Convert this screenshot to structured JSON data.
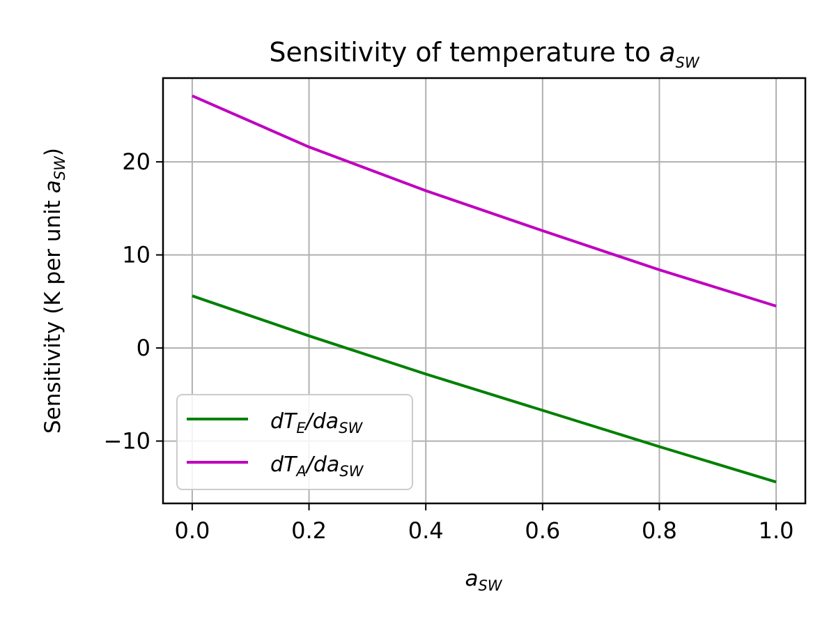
{
  "chart_data": {
    "type": "line",
    "title": {
      "prefix": "Sensitivity of temperature to ",
      "var": "a",
      "sub": "SW"
    },
    "xlabel": {
      "var": "a",
      "sub": "SW"
    },
    "ylabel": {
      "prefix": "Sensitivity (K per unit ",
      "var": "a",
      "sub": "SW",
      "suffix": ")"
    },
    "xlim": [
      -0.05,
      1.05
    ],
    "ylim": [
      -16.7,
      29.0
    ],
    "xticks": [
      0.0,
      0.2,
      0.4,
      0.6,
      0.8,
      1.0
    ],
    "xtick_labels": [
      "0.0",
      "0.2",
      "0.4",
      "0.6",
      "0.8",
      "1.0"
    ],
    "yticks": [
      -10,
      0,
      10,
      20
    ],
    "ytick_labels": [
      "−10",
      "0",
      "10",
      "20"
    ],
    "grid": true,
    "legend_position": "lower-left",
    "series": [
      {
        "name": "dT_E/da_SW",
        "legend": {
          "d1": "dT",
          "s1": "E",
          "mid": "/da",
          "s2": "SW"
        },
        "color": "#008000",
        "x": [
          0.0,
          0.2,
          0.4,
          0.6,
          0.8,
          1.0
        ],
        "y": [
          5.6,
          1.3,
          -2.8,
          -6.7,
          -10.6,
          -14.4
        ]
      },
      {
        "name": "dT_A/da_SW",
        "legend": {
          "d1": "dT",
          "s1": "A",
          "mid": "/da",
          "s2": "SW"
        },
        "color": "#bf00bf",
        "x": [
          0.0,
          0.2,
          0.4,
          0.6,
          0.8,
          1.0
        ],
        "y": [
          27.1,
          21.6,
          16.9,
          12.6,
          8.4,
          4.5
        ]
      }
    ]
  }
}
